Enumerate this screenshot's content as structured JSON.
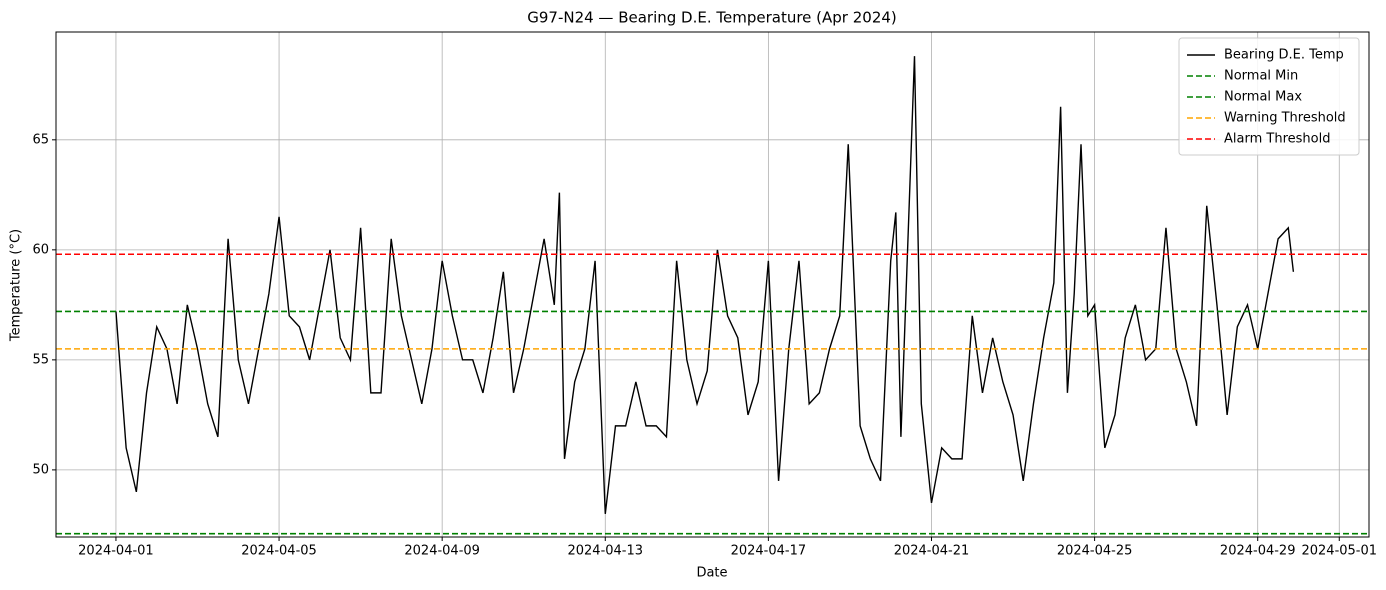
{
  "chart_data": {
    "type": "line",
    "title": "G97-N24 — Bearing D.E. Temperature (Apr 2024)",
    "x_label": "Date",
    "y_label": "Temperature (°C)",
    "x": [
      "2024-04-01 00:00",
      "2024-04-01 06:00",
      "2024-04-01 12:00",
      "2024-04-01 18:00",
      "2024-04-02 00:00",
      "2024-04-02 06:00",
      "2024-04-02 12:00",
      "2024-04-02 18:00",
      "2024-04-03 00:00",
      "2024-04-03 06:00",
      "2024-04-03 12:00",
      "2024-04-03 18:00",
      "2024-04-04 00:00",
      "2024-04-04 06:00",
      "2024-04-04 12:00",
      "2024-04-04 18:00",
      "2024-04-05 00:00",
      "2024-04-05 06:00",
      "2024-04-05 12:00",
      "2024-04-05 18:00",
      "2024-04-06 00:00",
      "2024-04-06 06:00",
      "2024-04-06 12:00",
      "2024-04-06 18:00",
      "2024-04-07 00:00",
      "2024-04-07 06:00",
      "2024-04-07 12:00",
      "2024-04-07 18:00",
      "2024-04-08 00:00",
      "2024-04-08 06:00",
      "2024-04-08 12:00",
      "2024-04-08 18:00",
      "2024-04-09 00:00",
      "2024-04-09 06:00",
      "2024-04-09 12:00",
      "2024-04-09 18:00",
      "2024-04-10 00:00",
      "2024-04-10 06:00",
      "2024-04-10 12:00",
      "2024-04-10 18:00",
      "2024-04-11 00:00",
      "2024-04-11 06:00",
      "2024-04-11 12:00",
      "2024-04-11 18:00",
      "2024-04-11 21:00",
      "2024-04-12 00:00",
      "2024-04-12 06:00",
      "2024-04-12 12:00",
      "2024-04-12 18:00",
      "2024-04-13 00:00",
      "2024-04-13 06:00",
      "2024-04-13 12:00",
      "2024-04-13 18:00",
      "2024-04-14 00:00",
      "2024-04-14 06:00",
      "2024-04-14 12:00",
      "2024-04-14 18:00",
      "2024-04-15 00:00",
      "2024-04-15 06:00",
      "2024-04-15 12:00",
      "2024-04-15 18:00",
      "2024-04-16 00:00",
      "2024-04-16 06:00",
      "2024-04-16 12:00",
      "2024-04-16 18:00",
      "2024-04-17 00:00",
      "2024-04-17 06:00",
      "2024-04-17 12:00",
      "2024-04-17 18:00",
      "2024-04-18 00:00",
      "2024-04-18 06:00",
      "2024-04-18 12:00",
      "2024-04-18 18:00",
      "2024-04-18 23:00",
      "2024-04-19 06:00",
      "2024-04-19 12:00",
      "2024-04-19 18:00",
      "2024-04-20 00:00",
      "2024-04-20 03:00",
      "2024-04-20 06:00",
      "2024-04-20 14:00",
      "2024-04-20 18:00",
      "2024-04-21 00:00",
      "2024-04-21 06:00",
      "2024-04-21 12:00",
      "2024-04-21 18:00",
      "2024-04-22 00:00",
      "2024-04-22 06:00",
      "2024-04-22 12:00",
      "2024-04-22 18:00",
      "2024-04-23 00:00",
      "2024-04-23 06:00",
      "2024-04-23 12:00",
      "2024-04-23 18:00",
      "2024-04-24 00:00",
      "2024-04-24 04:00",
      "2024-04-24 08:00",
      "2024-04-24 12:00",
      "2024-04-24 16:00",
      "2024-04-24 20:00",
      "2024-04-25 00:00",
      "2024-04-25 06:00",
      "2024-04-25 12:00",
      "2024-04-25 18:00",
      "2024-04-26 00:00",
      "2024-04-26 06:00",
      "2024-04-26 12:00",
      "2024-04-26 18:00",
      "2024-04-27 00:00",
      "2024-04-27 06:00",
      "2024-04-27 12:00",
      "2024-04-27 18:00",
      "2024-04-28 00:00",
      "2024-04-28 06:00",
      "2024-04-28 12:00",
      "2024-04-28 18:00",
      "2024-04-29 00:00",
      "2024-04-29 06:00",
      "2024-04-29 12:00",
      "2024-04-29 18:00",
      "2024-04-29 21:00"
    ],
    "series": [
      {
        "name": "Bearing D.E. Temp",
        "color": "#000000",
        "values": [
          57.2,
          51,
          49,
          53.5,
          56.5,
          55.5,
          53,
          57.5,
          55.5,
          53,
          51.5,
          60.5,
          55,
          53,
          55.5,
          58,
          61.5,
          57,
          56.5,
          55,
          57.5,
          60,
          56,
          55,
          61,
          53.5,
          53.5,
          60.5,
          57,
          55,
          53,
          55.5,
          59.5,
          57,
          55,
          55,
          53.5,
          56,
          59,
          53.5,
          55.5,
          58,
          60.5,
          57.5,
          62.6,
          50.5,
          54,
          55.5,
          59.5,
          48,
          52,
          52,
          54,
          52,
          52,
          51.5,
          59.5,
          55,
          53,
          54.5,
          60,
          57,
          56,
          52.5,
          54,
          59.5,
          49.5,
          55.5,
          59.5,
          53,
          53.5,
          55.5,
          57,
          64.8,
          52,
          50.5,
          49.5,
          59.5,
          61.7,
          51.5,
          68.8,
          53,
          48.5,
          51,
          50.5,
          50.5,
          57,
          53.5,
          56,
          54,
          52.5,
          49.5,
          53,
          56,
          58.5,
          66.5,
          53.5,
          58,
          64.8,
          57,
          57.5,
          51,
          52.5,
          56,
          57.5,
          55,
          55.5,
          61,
          55.5,
          54,
          52,
          62,
          57.5,
          52.5,
          56.5,
          57.5,
          55.5,
          58,
          60.5,
          61,
          59
        ]
      }
    ],
    "hlines": [
      {
        "name": "Normal Min",
        "color": "#008000",
        "value": 47.1
      },
      {
        "name": "Normal Max",
        "color": "#008000",
        "value": 57.2
      },
      {
        "name": "Warning Threshold",
        "color": "#ffa500",
        "value": 55.5
      },
      {
        "name": "Alarm Threshold",
        "color": "#ff0000",
        "value": 59.8
      }
    ],
    "hline_style": "dashed",
    "xlim": [
      "2024-03-30 12:43",
      "2024-05-01 17:30"
    ],
    "xticks": [
      "2024-04-01",
      "2024-04-05",
      "2024-04-09",
      "2024-04-13",
      "2024-04-17",
      "2024-04-21",
      "2024-04-25",
      "2024-04-29",
      "2024-05-01"
    ],
    "ylim": [
      46.95,
      69.9
    ],
    "yticks": [
      50,
      55,
      60,
      65
    ],
    "grid": true,
    "legend": "upper right"
  }
}
